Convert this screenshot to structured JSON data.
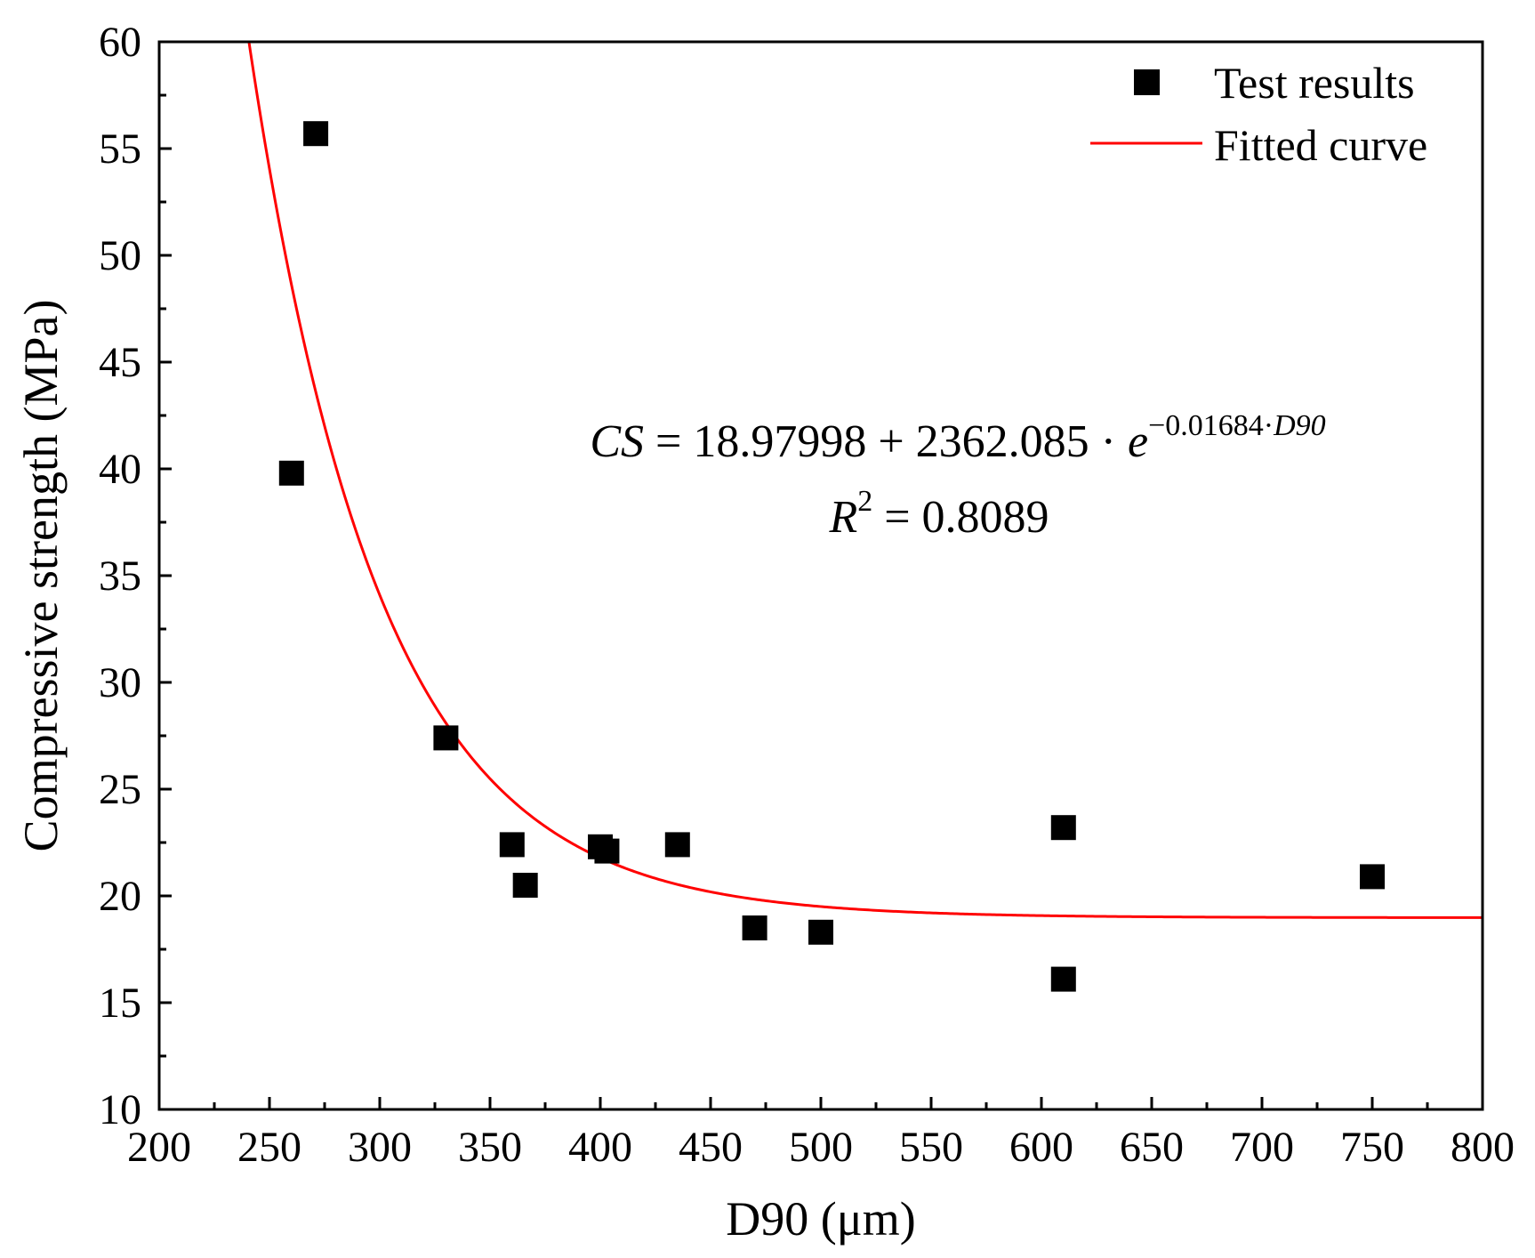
{
  "chart_data": {
    "type": "scatter",
    "xlabel": "D90 (μm)",
    "ylabel": "Compressive strength (MPa)",
    "xlim": [
      200,
      800
    ],
    "ylim": [
      10,
      60
    ],
    "xticks": [
      200,
      250,
      300,
      350,
      400,
      450,
      500,
      550,
      600,
      650,
      700,
      750,
      800
    ],
    "yticks": [
      10,
      15,
      20,
      25,
      30,
      35,
      40,
      45,
      50,
      55,
      60
    ],
    "grid": false,
    "legend_position": "top-right",
    "series": [
      {
        "name": "Test results",
        "kind": "scatter",
        "marker": "square",
        "color": "#000000",
        "points": [
          {
            "x": 260,
            "y": 39.8
          },
          {
            "x": 271,
            "y": 55.7
          },
          {
            "x": 330,
            "y": 27.4
          },
          {
            "x": 360,
            "y": 22.4
          },
          {
            "x": 366,
            "y": 20.5
          },
          {
            "x": 400,
            "y": 22.3
          },
          {
            "x": 403,
            "y": 22.1
          },
          {
            "x": 435,
            "y": 22.4
          },
          {
            "x": 470,
            "y": 18.5
          },
          {
            "x": 500,
            "y": 18.3
          },
          {
            "x": 610,
            "y": 23.2
          },
          {
            "x": 610,
            "y": 16.1
          },
          {
            "x": 750,
            "y": 20.9
          }
        ]
      },
      {
        "name": "Fitted curve",
        "kind": "line",
        "color": "#ff0000",
        "model": {
          "a": 18.97998,
          "b": 2362.085,
          "k": -0.01684
        }
      }
    ],
    "annotations": {
      "equation": {
        "lhs": "CS",
        "eq": " = 18.97998 + 2362.085 · ",
        "base": "e",
        "exponent": "−0.01684·",
        "exponent_var": "D90"
      },
      "r2": {
        "var": "R",
        "power": "2",
        "rest": " = 0.8089"
      }
    }
  }
}
